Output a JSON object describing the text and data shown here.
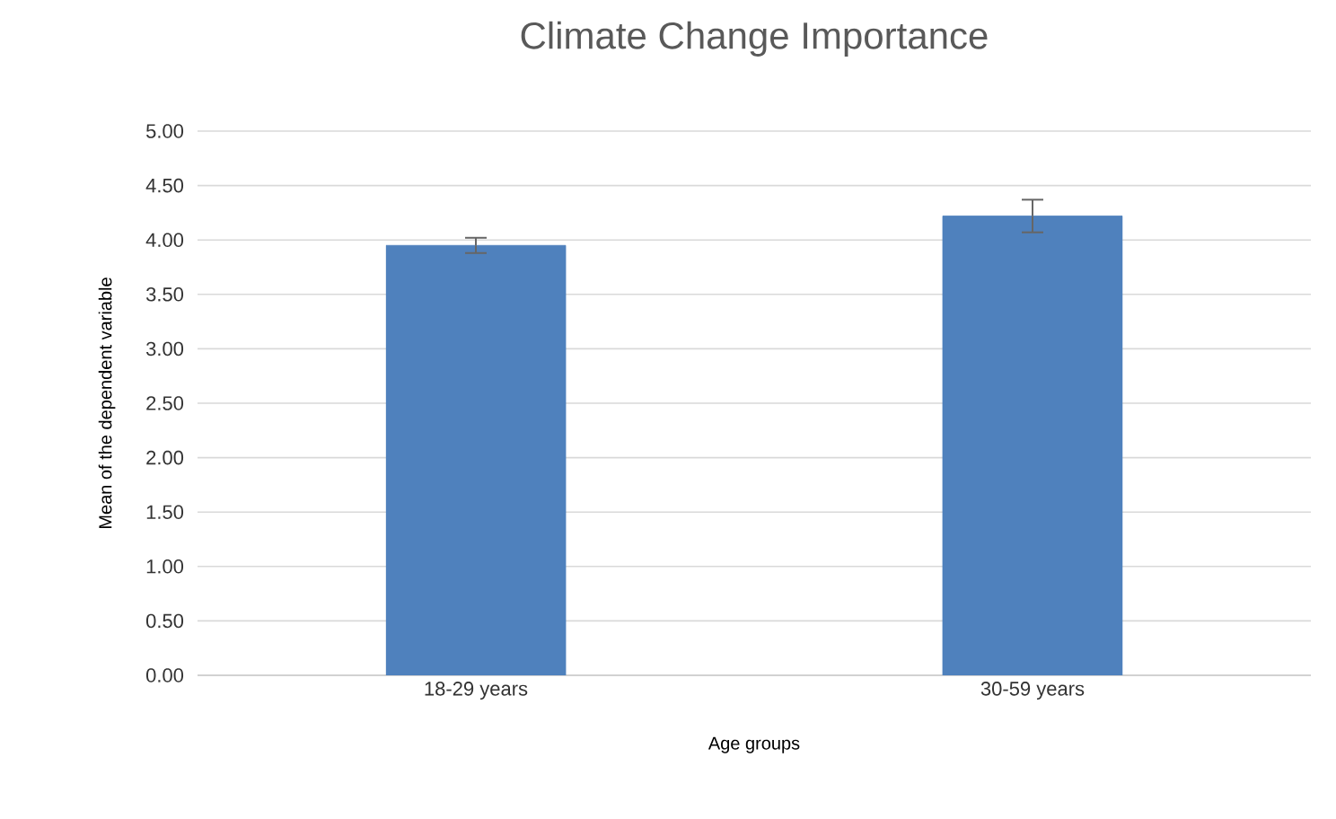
{
  "chart_data": {
    "type": "bar",
    "title": "Climate Change Importance",
    "xlabel": "Age groups",
    "ylabel": "Mean of the dependent variable",
    "categories": [
      "18-29 years",
      "30-59 years"
    ],
    "values": [
      3.95,
      4.22
    ],
    "errors": [
      0.07,
      0.15
    ],
    "color": "#4f81bd",
    "ylim": [
      0,
      5
    ],
    "yticks": [
      {
        "value": 0,
        "label": "0.00"
      },
      {
        "value": 0.5,
        "label": "0.50"
      },
      {
        "value": 1,
        "label": "1.00"
      },
      {
        "value": 1.5,
        "label": "1.50"
      },
      {
        "value": 2,
        "label": "2.00"
      },
      {
        "value": 2.5,
        "label": "2.50"
      },
      {
        "value": 3,
        "label": "3.00"
      },
      {
        "value": 3.5,
        "label": "3.50"
      },
      {
        "value": 4,
        "label": "4.00"
      },
      {
        "value": 4.5,
        "label": "4.50"
      },
      {
        "value": 5,
        "label": "5.00"
      }
    ],
    "grid": "y"
  }
}
